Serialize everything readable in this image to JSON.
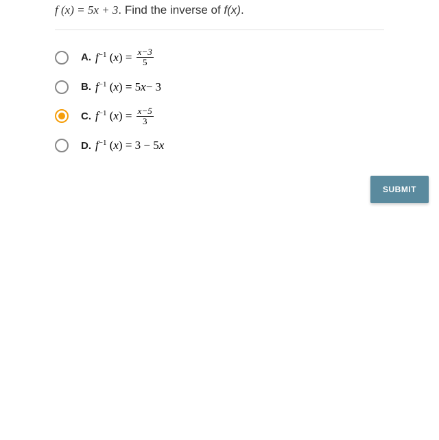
{
  "question": {
    "prefix_math": "f (x) = 5x + 3",
    "text": ". Find the inverse of ",
    "suffix_math": "f(x)",
    "end": "."
  },
  "options": [
    {
      "label": "A.",
      "type": "frac",
      "frac_num": "x−3",
      "frac_den": "5",
      "selected": false
    },
    {
      "label": "B.",
      "type": "expr",
      "expr": "5x − 3",
      "selected": false
    },
    {
      "label": "C.",
      "type": "frac",
      "frac_num": "x−5",
      "frac_den": "3",
      "selected": true
    },
    {
      "label": "D.",
      "type": "expr",
      "expr": "3 − 5x",
      "selected": false
    }
  ],
  "submit_label": "SUBMIT",
  "colors": {
    "accent": "#f59e0b",
    "submit_bg": "#5a8a9e",
    "text": "#333333",
    "divider": "#e0e0e0"
  }
}
